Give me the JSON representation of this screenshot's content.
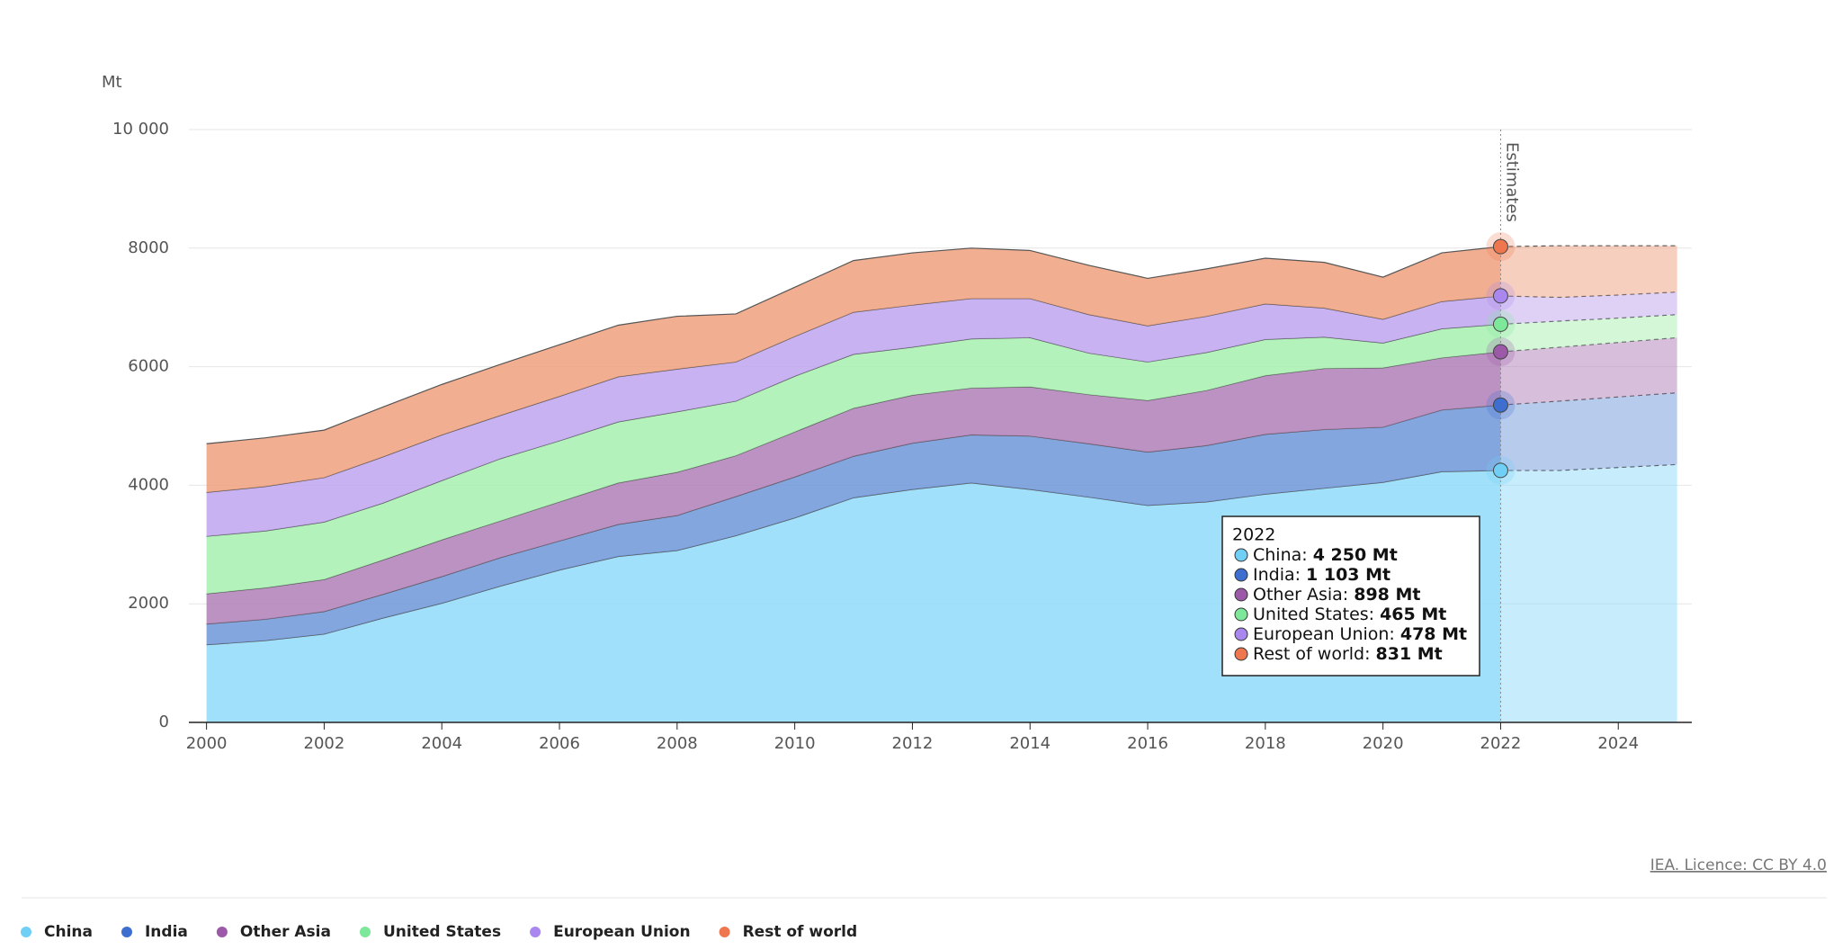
{
  "chart_data": {
    "type": "stacked-area",
    "unit_label": "Mt",
    "x": [
      2000,
      2001,
      2002,
      2003,
      2004,
      2005,
      2006,
      2007,
      2008,
      2009,
      2010,
      2011,
      2012,
      2013,
      2014,
      2015,
      2016,
      2017,
      2018,
      2019,
      2020,
      2021,
      2022,
      2023,
      2024,
      2025
    ],
    "series": [
      {
        "name": "China",
        "color": "#6fcff5",
        "fill": "#8fdbf9",
        "values": [
          1310,
          1380,
          1490,
          1760,
          2010,
          2300,
          2570,
          2800,
          2900,
          3150,
          3450,
          3790,
          3930,
          4040,
          3930,
          3800,
          3660,
          3720,
          3850,
          3950,
          4050,
          4230,
          4250,
          4250,
          4300,
          4350
        ]
      },
      {
        "name": "India",
        "color": "#3e6fd0",
        "fill": "#6f97d9",
        "values": [
          350,
          360,
          380,
          400,
          450,
          480,
          490,
          540,
          590,
          660,
          690,
          700,
          780,
          810,
          900,
          900,
          900,
          950,
          1010,
          990,
          930,
          1040,
          1103,
          1170,
          1190,
          1210
        ]
      },
      {
        "name": "Other Asia",
        "color": "#9b59a8",
        "fill": "#b07fb9",
        "values": [
          510,
          530,
          540,
          580,
          620,
          620,
          660,
          700,
          730,
          690,
          760,
          810,
          810,
          790,
          830,
          830,
          870,
          930,
          990,
          1030,
          1000,
          880,
          898,
          910,
          920,
          930
        ]
      },
      {
        "name": "United States",
        "color": "#7ee89a",
        "fill": "#a7f0b0",
        "values": [
          970,
          960,
          970,
          960,
          1000,
          1050,
          1030,
          1030,
          1020,
          920,
          940,
          910,
          810,
          830,
          830,
          700,
          650,
          640,
          610,
          530,
          420,
          490,
          465,
          440,
          410,
          390
        ]
      },
      {
        "name": "European Union",
        "color": "#a987ee",
        "fill": "#bfa4ee",
        "values": [
          740,
          750,
          750,
          780,
          770,
          730,
          750,
          760,
          720,
          660,
          670,
          710,
          710,
          680,
          660,
          650,
          610,
          610,
          600,
          490,
          400,
          460,
          478,
          400,
          390,
          380
        ]
      },
      {
        "name": "Rest of world",
        "color": "#ef7750",
        "fill": "#f0a07e",
        "values": [
          820,
          820,
          800,
          840,
          850,
          860,
          870,
          870,
          890,
          810,
          830,
          870,
          880,
          850,
          810,
          830,
          800,
          800,
          770,
          770,
          710,
          820,
          831,
          870,
          830,
          780
        ]
      }
    ],
    "estimates_start": 2022,
    "estimates_label": "Estimates",
    "xlim": [
      1999.7,
      2025.25
    ],
    "xticks": [
      2000,
      2002,
      2004,
      2006,
      2008,
      2010,
      2012,
      2014,
      2016,
      2018,
      2020,
      2022,
      2024
    ],
    "ylim": [
      0,
      10000
    ],
    "yticks": [
      0,
      2000,
      4000,
      6000,
      8000,
      {
        "value": 10000,
        "label": "10 000"
      }
    ],
    "grid": true,
    "tooltip": {
      "title": "2022",
      "entries": [
        {
          "label": "China:",
          "value": "4 250 Mt"
        },
        {
          "label": "India:",
          "value": "1 103 Mt"
        },
        {
          "label": "Other Asia:",
          "value": "898 Mt"
        },
        {
          "label": "United States:",
          "value": "465 Mt"
        },
        {
          "label": "European Union:",
          "value": "478 Mt"
        },
        {
          "label": "Rest of world:",
          "value": "831 Mt"
        }
      ]
    },
    "legend": "bottom-left",
    "source": "IEA. Licence: CC BY 4.0"
  }
}
